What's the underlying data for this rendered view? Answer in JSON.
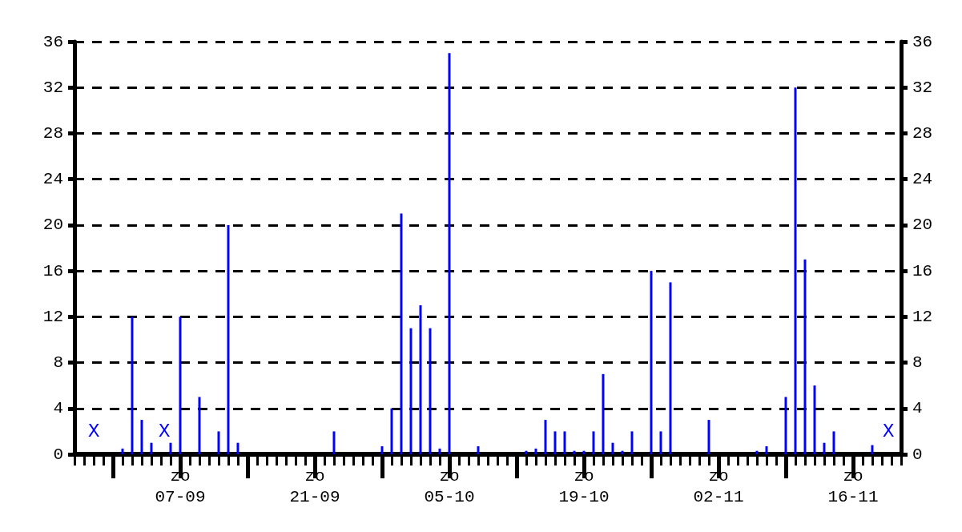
{
  "chart_data": {
    "type": "bar",
    "x": [
      "--09-01",
      "--09-02",
      "--09-03",
      "--09-04",
      "--09-06",
      "--09-07",
      "--09-09",
      "--09-11",
      "--09-12",
      "--09-13",
      "--09-23",
      "--09-28",
      "--09-29",
      "--09-30",
      "--10-01",
      "--10-02",
      "--10-03",
      "--10-04",
      "--10-05",
      "--10-08",
      "--10-13",
      "--10-14",
      "--10-15",
      "--10-16",
      "--10-17",
      "--10-18",
      "--10-19",
      "--10-20",
      "--10-21",
      "--10-22",
      "--10-23",
      "--10-24",
      "--10-26",
      "--10-27",
      "--10-28",
      "--11-01",
      "--11-06",
      "--11-07",
      "--11-09",
      "--11-10",
      "--11-11",
      "--11-12",
      "--11-13",
      "--11-14",
      "--11-18"
    ],
    "values": [
      0.5,
      12,
      3,
      1,
      1,
      12,
      5,
      2,
      20,
      1,
      2,
      0.7,
      4,
      21,
      11,
      13,
      11,
      0.5,
      35,
      0.7,
      0.3,
      0.5,
      3,
      2,
      2,
      0.3,
      0.3,
      2,
      7,
      1,
      0.3,
      2,
      16,
      2,
      15,
      3,
      0.3,
      0.7,
      5,
      32,
      17,
      6,
      1,
      2,
      0.8
    ],
    "color": "#0000ff",
    "xlim": [
      "--08-27",
      "--11-21"
    ],
    "xticks": [
      {
        "value": "--08-31",
        "label": null
      },
      {
        "value": "--09-07",
        "label": "zo\n07-09"
      },
      {
        "value": "--09-14",
        "label": null
      },
      {
        "value": "--09-21",
        "label": "zo\n21-09"
      },
      {
        "value": "--09-28",
        "label": null
      },
      {
        "value": "--10-05",
        "label": "zo\n05-10"
      },
      {
        "value": "--10-12",
        "label": null
      },
      {
        "value": "--10-19",
        "label": "zo\n19-10"
      },
      {
        "value": "--10-26",
        "label": null
      },
      {
        "value": "--11-02",
        "label": "zo\n02-11"
      },
      {
        "value": "--11-09",
        "label": null
      },
      {
        "value": "--11-16",
        "label": "zo\n16-11"
      }
    ],
    "ylim": [
      0,
      36
    ],
    "yticks": [
      0,
      4,
      8,
      12,
      16,
      20,
      24,
      28,
      32,
      36
    ],
    "y2lim": [
      0,
      36
    ],
    "y2ticks": [
      0,
      4,
      8,
      12,
      16,
      20,
      24,
      28,
      32,
      36
    ],
    "grid": "y",
    "annotations": [
      "X",
      "X",
      "X"
    ]
  }
}
